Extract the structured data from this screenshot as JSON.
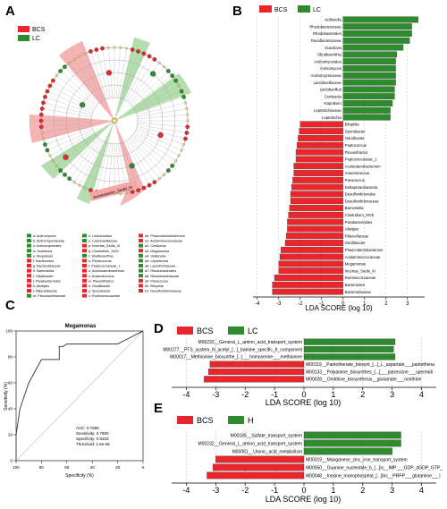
{
  "panels": {
    "A": {
      "letter": "A",
      "legend": [
        {
          "label": "BCS",
          "color": "#e8262b"
        },
        {
          "label": "LC",
          "color": "#2e8b2e"
        }
      ],
      "clade_label": "Acinetobacter_Seidlii_M",
      "taxa_key_col1": [
        "a: Actinomyces",
        "b: Actinomycetaceae",
        "c: Actinomycetales",
        "d: Scardovia",
        "e: Atopobium",
        "f: Bacteroides",
        "g: Bacteroidaceae",
        "h: Barnesiella",
        "i: Odoribacter",
        "j: Parabacteroides",
        "k: Alistipes",
        "l: Rikenellaceae",
        "m: Flavobacteriaceae"
      ],
      "taxa_key_col2": [
        "n: Lactobacillus",
        "o: Lactobacillaceae",
        "p: Incertae_Sedis_XI",
        "q: Clostridium_XIVb",
        "r: Shuttleworthia",
        "s: Peptococcus",
        "t: Peptococcaceae_1",
        "u: Acetanaerobacterium",
        "v: Anaerotruncus",
        "w: Flavonifractor",
        "x: Oscillibacter",
        "y: Sporobacter",
        "z: Ruminococcaceae"
      ],
      "taxa_key_col3": [
        "a0: Phascolarctobacterium",
        "a1: Acidaminococcaceae",
        "a2: Centipeda",
        "a3: Megamonas",
        "a4: Veillonella",
        "a5: Leptotrichia",
        "a6: Leptotrichiaceae",
        "a7: Rhodobacterales",
        "a8: Rhodobacteraceae",
        "a9: Paracoccus",
        "b0: Bilophila",
        "b1: Desulfovibrionaceae"
      ],
      "key_colors_col1": [
        "#2e8b2e",
        "#2e8b2e",
        "#2e8b2e",
        "#2e8b2e",
        "#2e8b2e",
        "#e8262b",
        "#e8262b",
        "#e8262b",
        "#e8262b",
        "#e8262b",
        "#e8262b",
        "#e8262b",
        "#2e8b2e"
      ],
      "key_colors_col2": [
        "#2e8b2e",
        "#2e8b2e",
        "#e8262b",
        "#e8262b",
        "#2e8b2e",
        "#e8262b",
        "#e8262b",
        "#e8262b",
        "#e8262b",
        "#e8262b",
        "#e8262b",
        "#e8262b",
        "#e8262b"
      ],
      "key_colors_col3": [
        "#e8262b",
        "#e8262b",
        "#2e8b2e",
        "#e8262b",
        "#2e8b2e",
        "#2e8b2e",
        "#2e8b2e",
        "#2e8b2e",
        "#2e8b2e",
        "#e8262b",
        "#e8262b",
        "#e8262b"
      ]
    },
    "B": {
      "letter": "B",
      "legend": [
        {
          "label": "BCS",
          "color": "#e8262b"
        },
        {
          "label": "LC",
          "color": "#2e8b2e"
        }
      ],
      "xlabel": "LDA SCORE (log 10)",
      "xticks": [
        "-4",
        "-3",
        "-2",
        "-1",
        "0",
        "1",
        "2",
        "3"
      ]
    },
    "C": {
      "letter": "C",
      "title": "Megamonas",
      "xlabel": "Specificity (%)",
      "ylabel": "Sensitivity (%)",
      "xticks": [
        "100",
        "80",
        "60",
        "40",
        "20",
        "0"
      ],
      "yticks": [
        "0",
        "20",
        "40",
        "60",
        "80",
        "100"
      ],
      "stats": [
        "AUC: 0.7806",
        "Sensitivity: 0.7800",
        "Specificity: 0.6333",
        "Threshold: 1.5e-06"
      ]
    },
    "D": {
      "letter": "D",
      "legend": [
        {
          "label": "BCS",
          "color": "#e8262b"
        },
        {
          "label": "LC",
          "color": "#2e8b2e"
        }
      ],
      "xlabel": "LDA SCORE (log 10)",
      "xticks": [
        "-4",
        "-3",
        "-2",
        "-1",
        "0",
        "1",
        "2",
        "3",
        "4"
      ]
    },
    "E": {
      "letter": "E",
      "legend": [
        {
          "label": "BCS",
          "color": "#e8262b"
        },
        {
          "label": "H",
          "color": "#2e8b2e"
        }
      ],
      "xlabel": "LDA SCORE (log 10)",
      "xticks": [
        "-4",
        "-3",
        "-2",
        "-1",
        "0",
        "1",
        "2",
        "3",
        "4"
      ]
    }
  },
  "chart_data": [
    {
      "type": "bar",
      "panel": "B",
      "xlabel": "LDA SCORE (log 10)",
      "xlim": [
        -4.2,
        3.8
      ],
      "colors": {
        "LC": "#2e8b2e",
        "BCS": "#e8262b"
      },
      "categories": [
        "Veillonella",
        "Rhodobacteraceae",
        "Rhodobacterales",
        "Flavobacteriaceae",
        "Scardovia",
        "Shuttleworthia",
        "Actinomycetales",
        "Actinomyces",
        "Actinomycetaceae",
        "Lactobacillaceae",
        "Lactobacillus",
        "Centipeda",
        "Atopobium",
        "Leptotrichiaceae",
        "Leptotrichia",
        "Bilophila",
        "Sporobacter",
        "Odoribacter",
        "Peptococcus",
        "Flavonifractor",
        "Peptococcaceae_1",
        "Acetanaerobacterium",
        "Anaerotruncus",
        "Paracoccus",
        "Deltaproteobacteria",
        "Desulfovibrionales",
        "Desulfovibrionaceae",
        "Barnesiella",
        "Clostridium_XIVb",
        "Parabacteroides",
        "Alistipes",
        "Rikenellaceae",
        "Oscillibacter",
        "Phascolarctobacterium",
        "Acidaminococcaceae",
        "Megamonas",
        "Incertae_Sedis_XI",
        "Ruminococcaceae",
        "Bacteroides",
        "Bacteroidaceae"
      ],
      "values": [
        3.5,
        3.2,
        3.2,
        3.1,
        2.8,
        2.5,
        2.45,
        2.45,
        2.45,
        2.45,
        2.4,
        2.4,
        2.3,
        2.2,
        2.2,
        -2.0,
        -2.05,
        -2.1,
        -2.15,
        -2.2,
        -2.2,
        -2.3,
        -2.3,
        -2.35,
        -2.4,
        -2.45,
        -2.45,
        -2.5,
        -2.55,
        -2.6,
        -2.6,
        -2.65,
        -2.7,
        -2.9,
        -2.95,
        -3.0,
        -3.0,
        -3.2,
        -3.3,
        -3.3
      ],
      "group": [
        "LC",
        "LC",
        "LC",
        "LC",
        "LC",
        "LC",
        "LC",
        "LC",
        "LC",
        "LC",
        "LC",
        "LC",
        "LC",
        "LC",
        "LC",
        "BCS",
        "BCS",
        "BCS",
        "BCS",
        "BCS",
        "BCS",
        "BCS",
        "BCS",
        "BCS",
        "BCS",
        "BCS",
        "BCS",
        "BCS",
        "BCS",
        "BCS",
        "BCS",
        "BCS",
        "BCS",
        "BCS",
        "BCS",
        "BCS",
        "BCS",
        "BCS",
        "BCS",
        "BCS"
      ]
    },
    {
      "type": "line",
      "panel": "C",
      "title": "Megamonas",
      "xlabel": "Specificity (%)",
      "ylabel": "Sensitivity (%)",
      "xlim": [
        100,
        0
      ],
      "ylim": [
        0,
        100
      ],
      "series": [
        {
          "name": "ROC",
          "x": [
            100,
            100,
            97,
            90,
            80,
            72,
            66,
            66,
            63,
            60,
            50,
            40,
            30,
            20,
            10,
            0
          ],
          "y": [
            0,
            20,
            40,
            60,
            78,
            78,
            78,
            88,
            88,
            90,
            90,
            90,
            90,
            90,
            95,
            100
          ]
        }
      ]
    },
    {
      "type": "bar",
      "panel": "D",
      "xlabel": "LDA SCORE (log 10)",
      "xlim": [
        -4.5,
        4.5
      ],
      "categories": [
        "M00232__General_L_amino_acid_transport_system",
        "M00277__PTS_system_N_acetyl_[...]_bamine_specific_II_component",
        "M00017__Methionine_biosynthe_[..]___homoserine___methionine",
        "M00119__Pantothenate_biosynt_[...]_L_aspartate___pantothena",
        "M00133__Polyamine_biosynthes_[...]___putrescine___spermidi",
        "M00028__Ornithine_biosynthesis__glutamate___ornithine"
      ],
      "values": [
        3.1,
        3.05,
        3.1,
        -3.2,
        -3.25,
        -3.4
      ],
      "group": [
        "LC",
        "LC",
        "LC",
        "BCS",
        "BCS",
        "BCS"
      ]
    },
    {
      "type": "bar",
      "panel": "E",
      "xlabel": "LDA SCORE (log 10)",
      "xlim": [
        -4.5,
        4.5
      ],
      "categories": [
        "M00185__Sulfate_transport_system",
        "M00232__General_L_amino_acid_transport_system",
        "M00061__Uronic_acid_metabolism",
        "M00319__Manganese_zinc_iron_transport_system",
        "M00050__Guanine_nucleotide_b_[...]is__IMP___GDP_dGDP_GTP_",
        "M00048__Inosine_monophosphat_[...]bis__PRPP___glutamine___I"
      ],
      "values": [
        3.3,
        3.3,
        3.0,
        -3.0,
        -3.1,
        -3.3
      ],
      "group": [
        "H",
        "H",
        "H",
        "BCS",
        "BCS",
        "BCS"
      ]
    }
  ]
}
